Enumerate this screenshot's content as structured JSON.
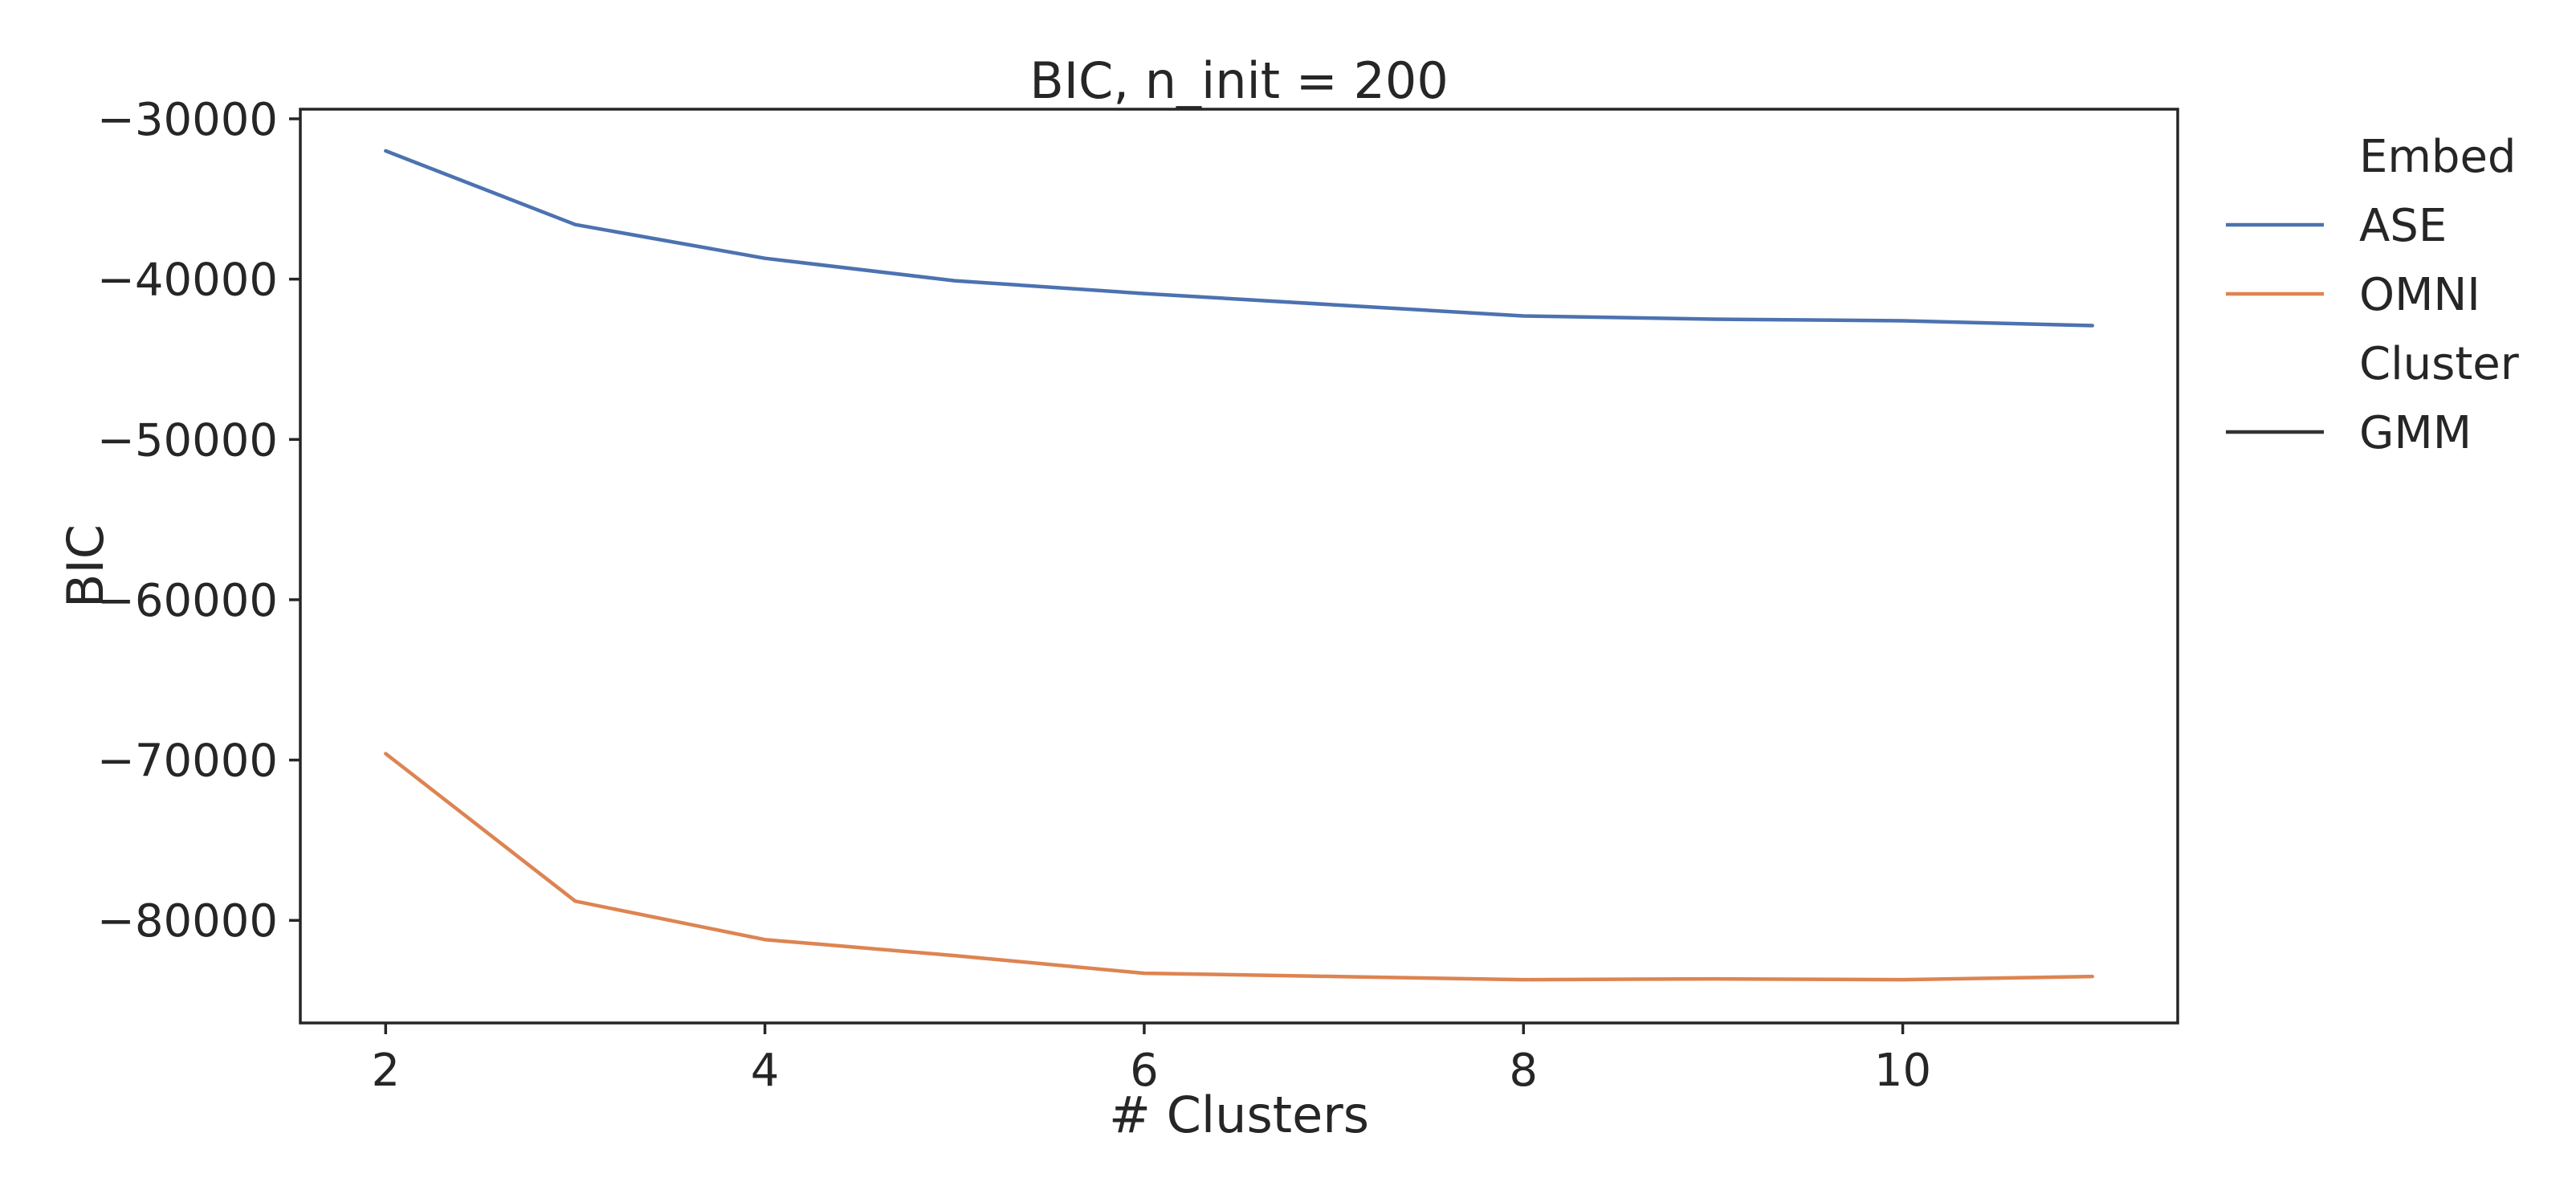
{
  "chart_data": {
    "type": "line",
    "title": "BIC, n_init = 200",
    "xlabel": "# Clusters",
    "ylabel": "BIC",
    "x": [
      2,
      3,
      4,
      5,
      6,
      7,
      8,
      9,
      10,
      11
    ],
    "xlim": [
      1.55,
      11.45
    ],
    "ylim": [
      -86400,
      -29400
    ],
    "xticks": [
      2,
      4,
      6,
      8,
      10
    ],
    "yticks": [
      -30000,
      -40000,
      -50000,
      -60000,
      -70000,
      -80000
    ],
    "tick_labels": {
      "x": [
        "2",
        "4",
        "6",
        "8",
        "10"
      ],
      "y": [
        "−30000",
        "−40000",
        "−50000",
        "−60000",
        "−70000",
        "−80000"
      ]
    },
    "grid": false,
    "legend_placement": "outside right",
    "series": [
      {
        "name": "ASE",
        "color": "#4c72b0",
        "values": [
          -32000,
          -36600,
          -38700,
          -40100,
          -40900,
          -41600,
          -42300,
          -42500,
          -42600,
          -42900
        ]
      },
      {
        "name": "OMNI",
        "color": "#dd8452",
        "values": [
          -69600,
          -78800,
          -81200,
          -82200,
          -83300,
          -83500,
          -83700,
          -83650,
          -83700,
          -83500
        ]
      }
    ],
    "legend": {
      "entries": [
        {
          "label": "Embed",
          "type": "heading"
        },
        {
          "label": "ASE",
          "type": "line",
          "color": "#4c72b0"
        },
        {
          "label": "OMNI",
          "type": "line",
          "color": "#dd8452"
        },
        {
          "label": "Cluster",
          "type": "heading"
        },
        {
          "label": "GMM",
          "type": "line",
          "color": "#333333"
        }
      ]
    }
  }
}
